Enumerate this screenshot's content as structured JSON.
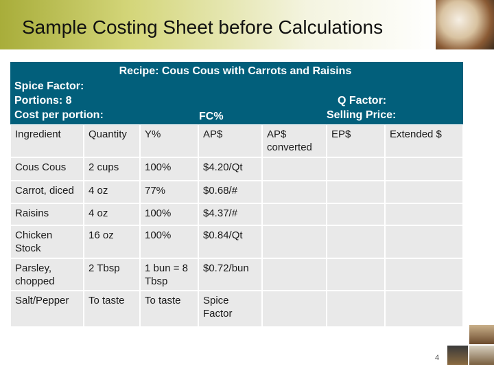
{
  "header": {
    "title": "Sample Costing Sheet before Calculations"
  },
  "recipe_box": {
    "recipe": "Recipe: Cous Cous with Carrots and Raisins",
    "spice_factor": "Spice Factor:",
    "portions": "Portions: 8",
    "cost_per_portion": "Cost per portion:",
    "fc": "FC%",
    "q_factor": "Q Factor:",
    "selling_price": "Selling Price:"
  },
  "table": {
    "columns": [
      "Ingredient",
      "Quantity",
      "Y%",
      "AP$",
      "AP$ converted",
      "EP$",
      "Extended  $"
    ],
    "rows": [
      [
        "Cous Cous",
        "2 cups",
        "100%",
        "$4.20/Qt"
      ],
      [
        "Carrot, diced",
        "4 oz",
        "77%",
        "$0.68/#"
      ],
      [
        "Raisins",
        "4 oz",
        "100%",
        "$4.37/#"
      ],
      [
        "Chicken Stock",
        "16 oz",
        "100%",
        "$0.84/Qt"
      ],
      [
        "Parsley, chopped",
        "2 Tbsp",
        "1 bun = 8 Tbsp",
        "$0.72/bun"
      ],
      [
        "Salt/Pepper",
        "To taste",
        "To taste",
        "Spice Factor"
      ]
    ]
  },
  "footer": {
    "page_number": "4"
  }
}
